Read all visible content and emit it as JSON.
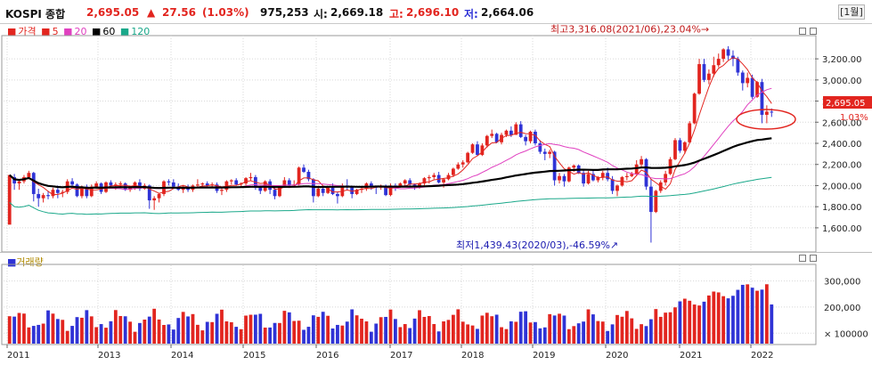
{
  "header": {
    "title": "KOSPI 종합",
    "price": "2,695.05",
    "change_arrow": "▲",
    "change": "27.56",
    "change_pct": "(1.03%)",
    "volume": "975,253",
    "open_label": "시:",
    "open": "2,669.18",
    "high_label": "고:",
    "high": "2,696.10",
    "low_label": "저:",
    "low": "2,664.06",
    "period": "[1월]"
  },
  "legend": {
    "price_label": "가격",
    "ma5": "5",
    "ma20": "20",
    "ma60": "60",
    "ma120": "120",
    "volume_label": "거래량"
  },
  "colors": {
    "up": "#e2251f",
    "down": "#2f33d6",
    "ma5": "#e2251f",
    "ma20": "#e040c0",
    "ma60": "#000000",
    "ma120": "#1aa88a",
    "highlight_box": "#e2251f"
  },
  "chart_data": [
    {
      "type": "candlestick",
      "title": "KOSPI 종합",
      "x_tick_labels": [
        "2011",
        "2013",
        "2014",
        "2015",
        "2016",
        "2017",
        "2018",
        "2019",
        "2020",
        "2021",
        "2022"
      ],
      "y_tick_labels": [
        "1,600.00",
        "1,800.00",
        "2,000.00",
        "2,200.00",
        "2,400.00",
        "2,600.00",
        "2,800.00",
        "3,000.00",
        "3,200.00"
      ],
      "ylim": [
        1380,
        3420
      ],
      "last_price_label": "2,695.05",
      "last_change_label": "1.03%",
      "annotations": [
        {
          "text": "최고3,316.08(2021/06),23.04%",
          "value": 3316.08
        },
        {
          "text": "최저1,439.43(2020/03),-46.59%",
          "value": 1439.43
        }
      ],
      "candles_approx": [
        [
          1630,
          2080,
          1650,
          2100
        ],
        [
          2080,
          2110,
          1960,
          2020
        ],
        [
          2020,
          2060,
          1960,
          2040
        ],
        [
          2040,
          2100,
          2020,
          2080
        ],
        [
          2080,
          2140,
          2060,
          2120
        ],
        [
          2120,
          2130,
          1850,
          1920
        ],
        [
          1920,
          1970,
          1800,
          1880
        ],
        [
          1880,
          1930,
          1840,
          1910
        ],
        [
          1910,
          1950,
          1870,
          1900
        ],
        [
          1900,
          1980,
          1880,
          1960
        ],
        [
          1960,
          2000,
          1880,
          1930
        ],
        [
          1930,
          1960,
          1890,
          1940
        ],
        [
          1940,
          2060,
          1920,
          2040
        ],
        [
          2040,
          2070,
          1990,
          2010
        ],
        [
          2010,
          2020,
          1890,
          1900
        ],
        [
          1900,
          2000,
          1880,
          1990
        ],
        [
          1990,
          2010,
          1880,
          1900
        ],
        [
          1900,
          2010,
          1890,
          1990
        ],
        [
          1990,
          2040,
          1970,
          2020
        ],
        [
          2020,
          2030,
          1920,
          1940
        ],
        [
          1940,
          2040,
          1930,
          2030
        ],
        [
          2030,
          2050,
          1980,
          2000
        ],
        [
          2000,
          2030,
          1960,
          2010
        ],
        [
          2010,
          2040,
          1990,
          2020
        ],
        [
          2020,
          2030,
          1950,
          1960
        ],
        [
          1960,
          2000,
          1940,
          1980
        ],
        [
          1980,
          2040,
          1960,
          2030
        ],
        [
          2030,
          2060,
          1950,
          1970
        ],
        [
          1970,
          2020,
          1960,
          2000
        ],
        [
          2000,
          2010,
          1780,
          1860
        ],
        [
          1860,
          1900,
          1770,
          1880
        ],
        [
          1880,
          1930,
          1840,
          1920
        ],
        [
          1920,
          2050,
          1900,
          2040
        ],
        [
          2040,
          2060,
          2000,
          2030
        ],
        [
          2030,
          2060,
          1980,
          1990
        ],
        [
          1990,
          2020,
          1950,
          1960
        ],
        [
          1960,
          2000,
          1930,
          1990
        ],
        [
          1990,
          2010,
          1940,
          1960
        ],
        [
          1960,
          2010,
          1940,
          2000
        ],
        [
          2000,
          2060,
          1980,
          2010
        ],
        [
          2010,
          2030,
          1990,
          2020
        ],
        [
          2020,
          2040,
          1990,
          2000
        ],
        [
          2000,
          2030,
          1980,
          2010
        ],
        [
          2010,
          2030,
          1930,
          1950
        ],
        [
          1950,
          1980,
          1910,
          1960
        ],
        [
          1960,
          2050,
          1940,
          2040
        ],
        [
          2040,
          2060,
          2010,
          2050
        ],
        [
          2050,
          2070,
          2000,
          2010
        ],
        [
          2010,
          2030,
          1980,
          2020
        ],
        [
          2020,
          2080,
          2000,
          2070
        ],
        [
          2070,
          2120,
          2050,
          2080
        ],
        [
          2080,
          2100,
          1960,
          1980
        ],
        [
          1980,
          1990,
          1920,
          1950
        ],
        [
          1950,
          2050,
          1940,
          2040
        ],
        [
          2040,
          2060,
          1920,
          1960
        ],
        [
          1960,
          1990,
          1870,
          1900
        ],
        [
          1900,
          2000,
          1890,
          1990
        ],
        [
          1990,
          2080,
          1980,
          2050
        ],
        [
          2050,
          2070,
          1980,
          2000
        ],
        [
          2000,
          2050,
          1990,
          2010
        ],
        [
          2010,
          2180,
          2000,
          2170
        ],
        [
          2170,
          2200,
          2120,
          2130
        ],
        [
          2130,
          2150,
          2040,
          2060
        ],
        [
          2060,
          2070,
          1840,
          1900
        ],
        [
          1900,
          2000,
          1890,
          1970
        ],
        [
          1970,
          2000,
          1900,
          1930
        ],
        [
          1930,
          1990,
          1920,
          1980
        ],
        [
          1980,
          2020,
          1910,
          1920
        ],
        [
          1920,
          1940,
          1830,
          1900
        ],
        [
          1900,
          2020,
          1890,
          2000
        ],
        [
          2000,
          2060,
          1960,
          1990
        ],
        [
          1990,
          2000,
          1880,
          1920
        ],
        [
          1920,
          1970,
          1910,
          1960
        ],
        [
          1960,
          1990,
          1930,
          1970
        ],
        [
          1970,
          2030,
          1950,
          2020
        ],
        [
          2020,
          2040,
          1960,
          1990
        ],
        [
          1990,
          2000,
          1920,
          1980
        ],
        [
          1980,
          2010,
          1960,
          2000
        ],
        [
          2000,
          2010,
          1900,
          1910
        ],
        [
          1910,
          2020,
          1900,
          2000
        ],
        [
          2000,
          2020,
          1950,
          1990
        ],
        [
          1990,
          2030,
          1980,
          2020
        ],
        [
          2020,
          2060,
          1990,
          2050
        ],
        [
          2050,
          2070,
          2000,
          2010
        ],
        [
          2010,
          2020,
          1960,
          2000
        ],
        [
          2000,
          2030,
          1970,
          2020
        ],
        [
          2020,
          2080,
          2000,
          2070
        ],
        [
          2070,
          2100,
          2020,
          2080
        ],
        [
          2080,
          2120,
          2060,
          2100
        ],
        [
          2100,
          2130,
          2020,
          2030
        ],
        [
          2030,
          2070,
          1980,
          2060
        ],
        [
          2060,
          2120,
          2050,
          2100
        ],
        [
          2100,
          2170,
          2080,
          2160
        ],
        [
          2160,
          2220,
          2150,
          2200
        ],
        [
          2200,
          2240,
          2170,
          2220
        ],
        [
          2220,
          2320,
          2210,
          2310
        ],
        [
          2310,
          2400,
          2300,
          2390
        ],
        [
          2390,
          2420,
          2280,
          2290
        ],
        [
          2290,
          2400,
          2280,
          2380
        ],
        [
          2380,
          2480,
          2360,
          2470
        ],
        [
          2470,
          2530,
          2450,
          2490
        ],
        [
          2490,
          2500,
          2400,
          2410
        ],
        [
          2410,
          2500,
          2390,
          2480
        ],
        [
          2480,
          2530,
          2460,
          2520
        ],
        [
          2520,
          2560,
          2460,
          2480
        ],
        [
          2480,
          2600,
          2480,
          2580
        ],
        [
          2580,
          2610,
          2450,
          2460
        ],
        [
          2460,
          2480,
          2380,
          2420
        ],
        [
          2420,
          2520,
          2400,
          2510
        ],
        [
          2510,
          2530,
          2380,
          2400
        ],
        [
          2400,
          2430,
          2300,
          2320
        ],
        [
          2320,
          2350,
          2240,
          2300
        ],
        [
          2300,
          2340,
          2260,
          2320
        ],
        [
          2320,
          2330,
          2000,
          2050
        ],
        [
          2050,
          2120,
          2020,
          2090
        ],
        [
          2090,
          2110,
          1990,
          2040
        ],
        [
          2040,
          2180,
          2030,
          2170
        ],
        [
          2170,
          2200,
          2130,
          2190
        ],
        [
          2190,
          2200,
          2110,
          2120
        ],
        [
          2120,
          2150,
          1990,
          2020
        ],
        [
          2020,
          2140,
          2010,
          2110
        ],
        [
          2110,
          2140,
          2040,
          2050
        ],
        [
          2050,
          2090,
          2030,
          2080
        ],
        [
          2080,
          2140,
          2050,
          2120
        ],
        [
          2120,
          2170,
          2040,
          2060
        ],
        [
          2060,
          2090,
          1920,
          1950
        ],
        [
          1950,
          2010,
          1900,
          2000
        ],
        [
          2000,
          2090,
          1990,
          2080
        ],
        [
          2080,
          2120,
          2050,
          2090
        ],
        [
          2090,
          2130,
          2080,
          2110
        ],
        [
          2110,
          2240,
          2100,
          2200
        ],
        [
          2200,
          2280,
          2180,
          2250
        ],
        [
          2250,
          2260,
          1960,
          1990
        ],
        [
          1990,
          2060,
          1460,
          1750
        ],
        [
          1750,
          1960,
          1740,
          1950
        ],
        [
          1950,
          2050,
          1930,
          2030
        ],
        [
          2030,
          2140,
          2000,
          2110
        ],
        [
          2110,
          2270,
          2100,
          2250
        ],
        [
          2250,
          2450,
          2240,
          2430
        ],
        [
          2430,
          2450,
          2310,
          2330
        ],
        [
          2330,
          2420,
          2300,
          2410
        ],
        [
          2410,
          2610,
          2400,
          2590
        ],
        [
          2590,
          2880,
          2580,
          2870
        ],
        [
          2870,
          3200,
          2860,
          3150
        ],
        [
          3150,
          3200,
          2980,
          3000
        ],
        [
          3000,
          3100,
          2960,
          3060
        ],
        [
          3060,
          3220,
          3030,
          3140
        ],
        [
          3140,
          3250,
          3120,
          3200
        ],
        [
          3200,
          3300,
          3170,
          3290
        ],
        [
          3290,
          3320,
          3190,
          3230
        ],
        [
          3230,
          3280,
          3130,
          3200
        ],
        [
          3200,
          3220,
          3040,
          3070
        ],
        [
          3070,
          3090,
          2900,
          2970
        ],
        [
          2970,
          3070,
          2930,
          3020
        ],
        [
          3020,
          3050,
          2820,
          2840
        ],
        [
          2840,
          2990,
          2830,
          2980
        ],
        [
          2980,
          3010,
          2590,
          2670
        ],
        [
          2670,
          2760,
          2590,
          2700
        ],
        [
          2700,
          2730,
          2650,
          2695
        ]
      ]
    },
    {
      "type": "bar",
      "title": "거래량",
      "y_tick_labels": [
        "× 100000",
        "200,000",
        "300,000"
      ],
      "ylim": [
        60000,
        360000
      ]
    }
  ]
}
